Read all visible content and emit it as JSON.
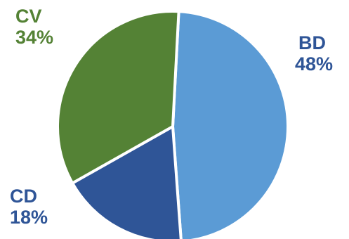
{
  "chart_data": {
    "type": "pie",
    "slices": [
      {
        "category": "BD",
        "value": 48,
        "label": "48%",
        "color": "#5B9BD5"
      },
      {
        "category": "CD",
        "value": 18,
        "label": "18%",
        "color": "#2F5597"
      },
      {
        "category": "CV",
        "value": 34,
        "label": "34%",
        "color": "#548235"
      }
    ],
    "label_colors": {
      "BD": "#2F5597",
      "CD": "#2F5597",
      "CV": "#548235"
    },
    "legend": "none"
  }
}
